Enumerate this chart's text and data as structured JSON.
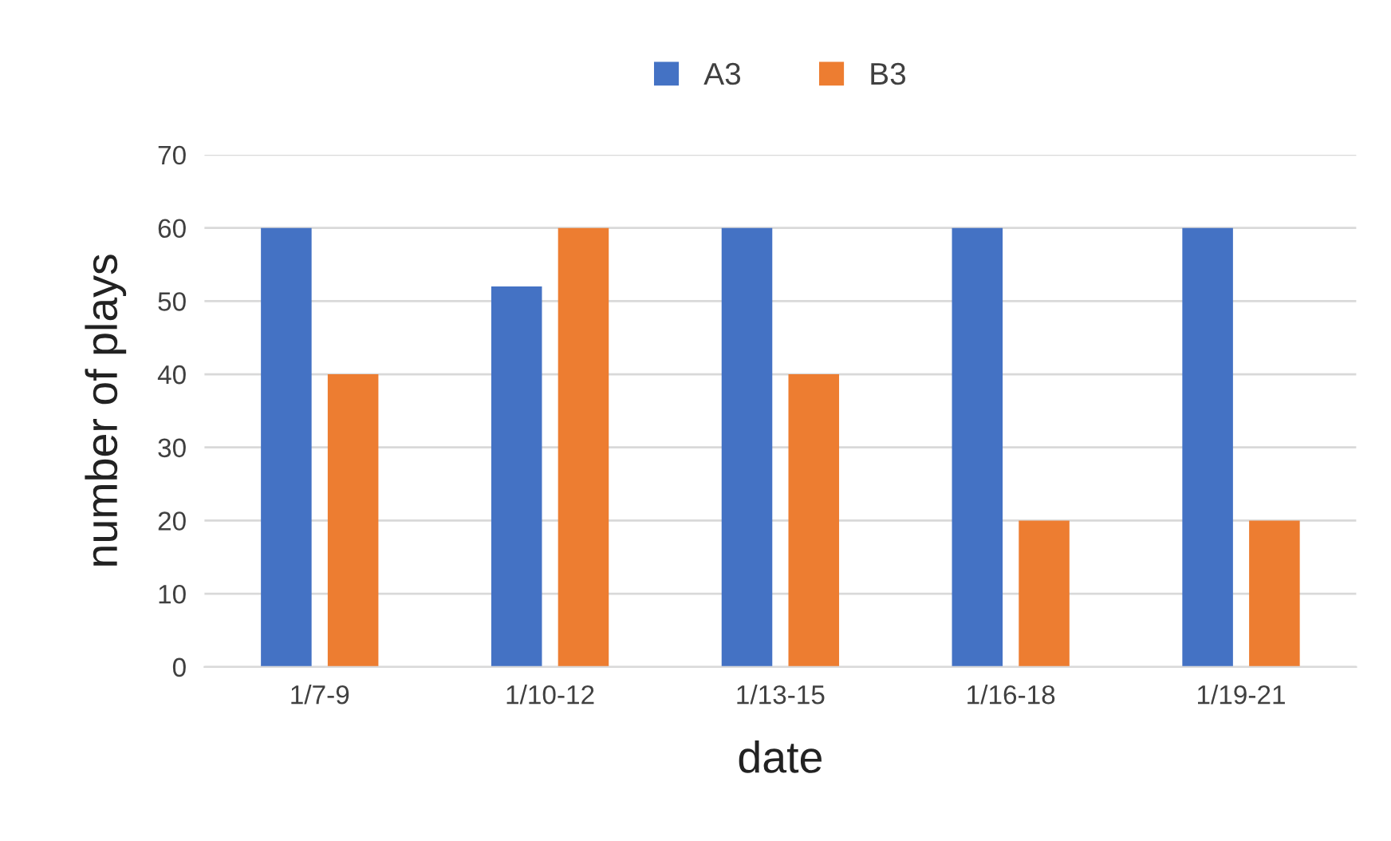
{
  "chart_data": {
    "type": "bar",
    "xlabel": "date",
    "ylabel": "number of plays",
    "categories": [
      "1/7-9",
      "1/10-12",
      "1/13-15",
      "1/16-18",
      "1/19-21"
    ],
    "series": [
      {
        "name": "A3",
        "color": "#4472c4",
        "values": [
          60,
          52,
          60,
          60,
          60
        ]
      },
      {
        "name": "B3",
        "color": "#ed7d31",
        "values": [
          40,
          60,
          40,
          20,
          20
        ]
      }
    ],
    "ylim": [
      0,
      70
    ],
    "yticks": [
      0,
      10,
      20,
      30,
      40,
      50,
      60,
      70
    ],
    "grid": "y",
    "legend": "top"
  }
}
